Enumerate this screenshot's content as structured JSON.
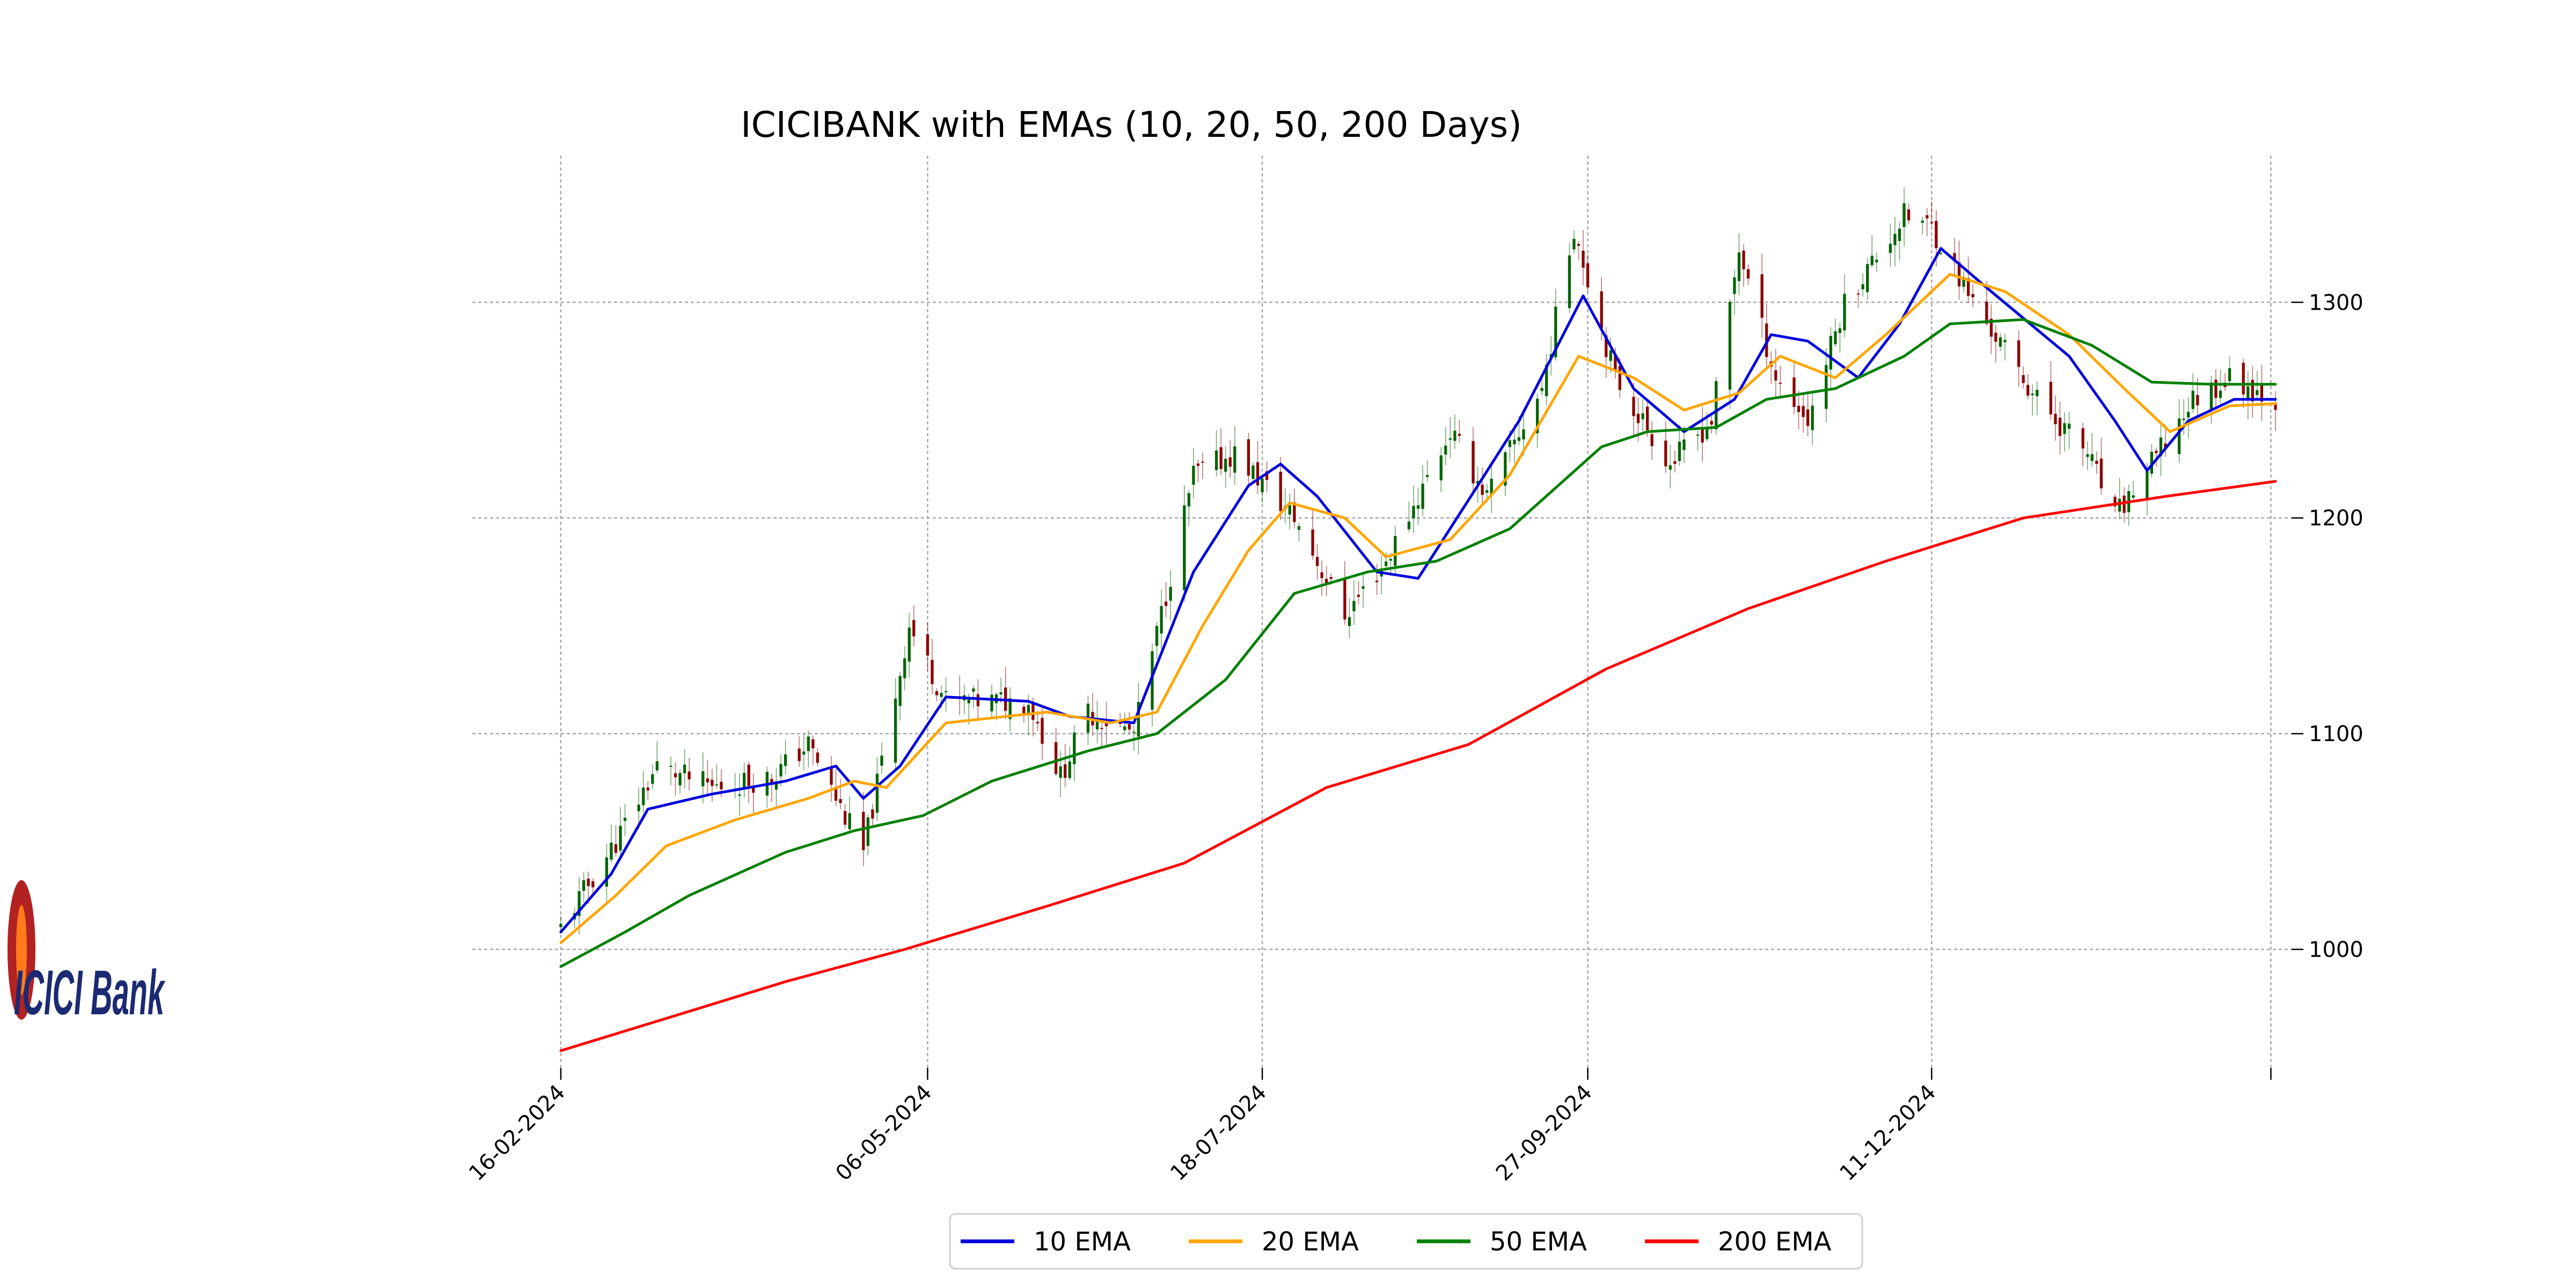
{
  "chart_data": {
    "type": "candlestick",
    "title": "ICICIBANK with EMAs (10, 20, 50, 200 Days)",
    "xlabel": "",
    "ylabel": "",
    "x_tick_labels": [
      "16-02-2024",
      "06-05-2024",
      "18-07-2024",
      "27-09-2024",
      "11-12-2024"
    ],
    "x_range": [
      "2024-02-16",
      "2025-02-24"
    ],
    "y_ticks": [
      1000,
      1100,
      1200,
      1300
    ],
    "ylim": [
      945,
      1368
    ],
    "y_axis_side": "right",
    "grid": true,
    "legend_position": "bottom-center",
    "up_color": "#006400",
    "down_color": "#8b0000",
    "ohlc_anchors": [
      {
        "date": "2024-02-16",
        "close": 1010
      },
      {
        "date": "2024-02-28",
        "close": 1050
      },
      {
        "date": "2024-03-08",
        "close": 1085
      },
      {
        "date": "2024-03-20",
        "close": 1075
      },
      {
        "date": "2024-04-02",
        "close": 1080
      },
      {
        "date": "2024-04-10",
        "close": 1095
      },
      {
        "date": "2024-04-22",
        "close": 1045
      },
      {
        "date": "2024-05-02",
        "close": 1150
      },
      {
        "date": "2024-05-10",
        "close": 1115
      },
      {
        "date": "2024-05-28",
        "close": 1115
      },
      {
        "date": "2024-06-04",
        "close": 1080
      },
      {
        "date": "2024-06-10",
        "close": 1110
      },
      {
        "date": "2024-06-20",
        "close": 1100
      },
      {
        "date": "2024-07-03",
        "close": 1220
      },
      {
        "date": "2024-07-12",
        "close": 1230
      },
      {
        "date": "2024-07-25",
        "close": 1200
      },
      {
        "date": "2024-08-05",
        "close": 1155
      },
      {
        "date": "2024-08-14",
        "close": 1180
      },
      {
        "date": "2024-08-28",
        "close": 1240
      },
      {
        "date": "2024-09-05",
        "close": 1210
      },
      {
        "date": "2024-09-17",
        "close": 1260
      },
      {
        "date": "2024-09-24",
        "close": 1335
      },
      {
        "date": "2024-10-03",
        "close": 1265
      },
      {
        "date": "2024-10-15",
        "close": 1225
      },
      {
        "date": "2024-10-24",
        "close": 1245
      },
      {
        "date": "2024-10-30",
        "close": 1325
      },
      {
        "date": "2024-11-07",
        "close": 1265
      },
      {
        "date": "2024-11-14",
        "close": 1245
      },
      {
        "date": "2024-11-22",
        "close": 1300
      },
      {
        "date": "2024-12-05",
        "close": 1340
      },
      {
        "date": "2024-12-11",
        "close": 1335
      },
      {
        "date": "2024-12-20",
        "close": 1300
      },
      {
        "date": "2025-01-03",
        "close": 1255
      },
      {
        "date": "2025-01-14",
        "close": 1230
      },
      {
        "date": "2025-01-20",
        "close": 1200
      },
      {
        "date": "2025-01-28",
        "close": 1225
      },
      {
        "date": "2025-02-06",
        "close": 1255
      },
      {
        "date": "2025-02-14",
        "close": 1265
      },
      {
        "date": "2025-02-24",
        "close": 1255
      }
    ],
    "series": [
      {
        "name": "10 EMA",
        "color": "#0000dd",
        "points": [
          [
            "2024-02-16",
            1008
          ],
          [
            "2024-02-27",
            1035
          ],
          [
            "2024-03-06",
            1065
          ],
          [
            "2024-03-20",
            1072
          ],
          [
            "2024-04-05",
            1078
          ],
          [
            "2024-04-16",
            1085
          ],
          [
            "2024-04-22",
            1070
          ],
          [
            "2024-04-30",
            1085
          ],
          [
            "2024-05-10",
            1117
          ],
          [
            "2024-05-28",
            1115
          ],
          [
            "2024-06-06",
            1108
          ],
          [
            "2024-06-20",
            1105
          ],
          [
            "2024-07-03",
            1175
          ],
          [
            "2024-07-15",
            1215
          ],
          [
            "2024-07-22",
            1225
          ],
          [
            "2024-07-30",
            1210
          ],
          [
            "2024-08-12",
            1175
          ],
          [
            "2024-08-21",
            1172
          ],
          [
            "2024-09-03",
            1215
          ],
          [
            "2024-09-12",
            1245
          ],
          [
            "2024-09-26",
            1303
          ],
          [
            "2024-10-07",
            1260
          ],
          [
            "2024-10-18",
            1240
          ],
          [
            "2024-10-29",
            1255
          ],
          [
            "2024-11-06",
            1285
          ],
          [
            "2024-11-14",
            1282
          ],
          [
            "2024-11-25",
            1265
          ],
          [
            "2024-12-04",
            1290
          ],
          [
            "2024-12-13",
            1325
          ],
          [
            "2024-12-24",
            1305
          ],
          [
            "2025-01-10",
            1275
          ],
          [
            "2025-01-20",
            1245
          ],
          [
            "2025-01-27",
            1222
          ],
          [
            "2025-02-05",
            1245
          ],
          [
            "2025-02-15",
            1255
          ],
          [
            "2025-02-24",
            1255
          ]
        ]
      },
      {
        "name": "20 EMA",
        "color": "#ffa500",
        "points": [
          [
            "2024-02-16",
            1003
          ],
          [
            "2024-02-28",
            1025
          ],
          [
            "2024-03-10",
            1048
          ],
          [
            "2024-03-25",
            1060
          ],
          [
            "2024-04-10",
            1070
          ],
          [
            "2024-04-20",
            1078
          ],
          [
            "2024-04-27",
            1075
          ],
          [
            "2024-05-10",
            1105
          ],
          [
            "2024-06-01",
            1110
          ],
          [
            "2024-06-15",
            1105
          ],
          [
            "2024-06-25",
            1110
          ],
          [
            "2024-07-05",
            1150
          ],
          [
            "2024-07-15",
            1185
          ],
          [
            "2024-07-24",
            1207
          ],
          [
            "2024-08-05",
            1200
          ],
          [
            "2024-08-14",
            1182
          ],
          [
            "2024-08-28",
            1190
          ],
          [
            "2024-09-10",
            1220
          ],
          [
            "2024-09-25",
            1275
          ],
          [
            "2024-10-07",
            1265
          ],
          [
            "2024-10-18",
            1250
          ],
          [
            "2024-10-30",
            1258
          ],
          [
            "2024-11-08",
            1275
          ],
          [
            "2024-11-20",
            1265
          ],
          [
            "2024-12-01",
            1285
          ],
          [
            "2024-12-15",
            1313
          ],
          [
            "2024-12-27",
            1305
          ],
          [
            "2025-01-10",
            1285
          ],
          [
            "2025-01-22",
            1260
          ],
          [
            "2025-02-01",
            1240
          ],
          [
            "2025-02-14",
            1252
          ],
          [
            "2025-02-24",
            1253
          ]
        ]
      },
      {
        "name": "50 EMA",
        "color": "#008000",
        "points": [
          [
            "2024-02-16",
            992
          ],
          [
            "2024-03-01",
            1008
          ],
          [
            "2024-03-15",
            1025
          ],
          [
            "2024-04-05",
            1045
          ],
          [
            "2024-04-20",
            1055
          ],
          [
            "2024-05-05",
            1062
          ],
          [
            "2024-05-20",
            1078
          ],
          [
            "2024-06-10",
            1092
          ],
          [
            "2024-06-25",
            1100
          ],
          [
            "2024-07-10",
            1125
          ],
          [
            "2024-07-25",
            1165
          ],
          [
            "2024-08-10",
            1175
          ],
          [
            "2024-08-25",
            1180
          ],
          [
            "2024-09-10",
            1195
          ],
          [
            "2024-09-30",
            1233
          ],
          [
            "2024-10-10",
            1240
          ],
          [
            "2024-10-25",
            1242
          ],
          [
            "2024-11-05",
            1255
          ],
          [
            "2024-11-20",
            1260
          ],
          [
            "2024-12-05",
            1275
          ],
          [
            "2024-12-15",
            1290
          ],
          [
            "2024-12-31",
            1292
          ],
          [
            "2025-01-15",
            1280
          ],
          [
            "2025-01-28",
            1263
          ],
          [
            "2025-02-10",
            1262
          ],
          [
            "2025-02-24",
            1262
          ]
        ]
      },
      {
        "name": "200 EMA",
        "color": "#ff0000",
        "points": [
          [
            "2024-02-16",
            953
          ],
          [
            "2024-03-10",
            968
          ],
          [
            "2024-04-05",
            985
          ],
          [
            "2024-05-01",
            1000
          ],
          [
            "2024-06-01",
            1020
          ],
          [
            "2024-07-01",
            1040
          ],
          [
            "2024-08-01",
            1075
          ],
          [
            "2024-09-01",
            1095
          ],
          [
            "2024-10-01",
            1130
          ],
          [
            "2024-11-01",
            1158
          ],
          [
            "2024-12-01",
            1180
          ],
          [
            "2024-12-31",
            1200
          ],
          [
            "2025-01-31",
            1210
          ],
          [
            "2025-02-24",
            1217
          ]
        ]
      }
    ]
  },
  "logo": {
    "text": "ICICI Bank",
    "brand_color": "#1b2a72",
    "accent_color": "#b22222"
  }
}
